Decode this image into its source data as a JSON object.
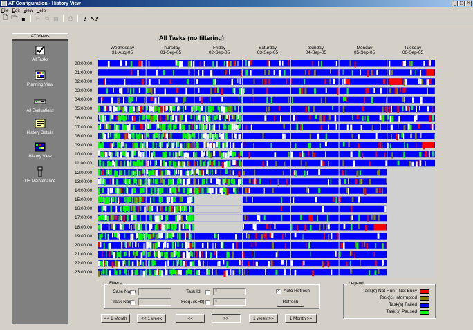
{
  "window": {
    "title": "AT Configuration - History View"
  },
  "menu": [
    "File",
    "Edit",
    "View",
    "Help"
  ],
  "toolbar": {
    "icons": [
      "new-icon",
      "open-icon",
      "save-icon",
      "cut-icon",
      "copy-icon",
      "paste-icon",
      "print-icon",
      "help-icon",
      "context-help-icon"
    ]
  },
  "views": {
    "header": "AT Views",
    "items": [
      {
        "label": "All Tasks",
        "icon": "all-tasks-icon"
      },
      {
        "label": "Planning View",
        "icon": "planning-view-icon"
      },
      {
        "label": "All Evaluations",
        "icon": "all-evaluations-icon"
      },
      {
        "label": "History Details",
        "icon": "history-details-icon"
      },
      {
        "label": "History View",
        "icon": "history-view-icon"
      },
      {
        "label": "DB Maintenance",
        "icon": "db-maintenance-icon"
      }
    ]
  },
  "chart": {
    "title": "All Tasks (no filtering)",
    "days": [
      {
        "weekday": "Wednesday",
        "date": "31-Aug-05"
      },
      {
        "weekday": "Thursday",
        "date": "01-Sep-05"
      },
      {
        "weekday": "Friday",
        "date": "02-Sep-05"
      },
      {
        "weekday": "Saturday",
        "date": "03-Sep-05"
      },
      {
        "weekday": "Sunday",
        "date": "04-Sep-05"
      },
      {
        "weekday": "Monday",
        "date": "05-Sep-05"
      },
      {
        "weekday": "Tuesday",
        "date": "06-Sep-05"
      }
    ],
    "hours": [
      "00:00:00",
      "01:00:00",
      "02:00:00",
      "03:00:00",
      "04:00:00",
      "05:00:00",
      "06:00:00",
      "07:00:00",
      "08:00:00",
      "09:00:00",
      "10:00:00",
      "11:00:00",
      "12:00:00",
      "13:00:00",
      "14:00:00",
      "15:00:00",
      "16:00:00",
      "17:00:00",
      "18:00:00",
      "19:00:00",
      "20:00:00",
      "21:00:00",
      "22:00:00",
      "23:00:00"
    ],
    "colors": {
      "failed": "#0000ff",
      "paused": "#00ff00",
      "interrupted": "#808000",
      "not_run": "#ff0000",
      "empty": "#d0d0d0"
    }
  },
  "filters": {
    "title": "Filters",
    "case_name_label": "Case Name",
    "task_name_label": "Task Name",
    "task_id_label": "Task Id",
    "task_id_value": "0",
    "freq_label": "Freq. (KHz)",
    "freq_value": "0",
    "auto_refresh_label": "Auto Refresh",
    "auto_refresh_checked": true,
    "refresh_label": "Refresh"
  },
  "legend": {
    "title": "Legend",
    "items": [
      {
        "label": "Task(s) Not Run - Not Busy",
        "color": "#ff0000"
      },
      {
        "label": "Task(s) Interrupted",
        "color": "#808000"
      },
      {
        "label": "Task(s) Failed",
        "color": "#0000ff"
      },
      {
        "label": "Task(s) Paused",
        "color": "#00ff00"
      }
    ]
  },
  "nav": {
    "back_month": "<< 1 Month",
    "back_week": "<< 1 week",
    "back": "<<",
    "forward": ">>",
    "forward_week": "1 week >>",
    "forward_month": "1 Month >>"
  }
}
